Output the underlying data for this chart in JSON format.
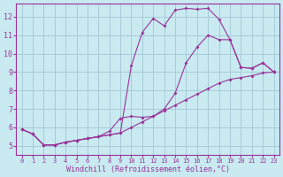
{
  "background_color": "#c8eaf0",
  "grid_color": "#a8ccd8",
  "line_color": "#993399",
  "xlabel": "Windchill (Refroidissement éolien,°C)",
  "xlim": [
    -0.5,
    23.5
  ],
  "ylim": [
    4.5,
    12.7
  ],
  "yticks": [
    5,
    6,
    7,
    8,
    9,
    10,
    11,
    12
  ],
  "xticks": [
    0,
    1,
    2,
    3,
    4,
    5,
    6,
    7,
    8,
    9,
    10,
    11,
    12,
    13,
    14,
    15,
    16,
    17,
    18,
    19,
    20,
    21,
    22,
    23
  ],
  "series1_x": [
    0,
    1,
    2,
    3,
    4,
    5,
    6,
    7,
    8,
    9,
    10,
    11,
    12,
    13,
    14,
    15,
    16,
    17,
    18,
    19,
    20,
    21,
    22,
    23
  ],
  "series1_y": [
    5.9,
    5.65,
    5.05,
    5.05,
    5.2,
    5.3,
    5.4,
    5.5,
    5.6,
    5.7,
    6.0,
    6.3,
    6.6,
    6.9,
    7.2,
    7.5,
    7.8,
    8.1,
    8.4,
    8.6,
    8.7,
    8.8,
    8.95,
    9.0
  ],
  "series2_x": [
    0,
    1,
    2,
    3,
    4,
    5,
    6,
    7,
    8,
    9,
    10,
    11,
    12,
    13,
    14,
    15,
    16,
    17,
    18,
    19,
    20,
    21,
    22,
    23
  ],
  "series2_y": [
    5.9,
    5.65,
    5.05,
    5.05,
    5.2,
    5.3,
    5.4,
    5.5,
    5.6,
    5.7,
    9.35,
    11.15,
    11.9,
    11.5,
    12.35,
    12.45,
    12.4,
    12.45,
    11.85,
    10.75,
    9.25,
    9.2,
    9.5,
    9.0
  ],
  "series3_x": [
    0,
    1,
    2,
    3,
    4,
    5,
    6,
    7,
    8,
    9,
    10,
    11,
    12,
    13,
    14,
    15,
    16,
    17,
    18,
    19,
    20,
    21,
    22,
    23
  ],
  "series3_y": [
    5.9,
    5.65,
    5.05,
    5.05,
    5.2,
    5.3,
    5.4,
    5.5,
    5.8,
    6.5,
    6.6,
    6.55,
    6.6,
    7.0,
    7.85,
    9.5,
    10.35,
    11.0,
    10.75,
    10.75,
    9.25,
    9.2,
    9.5,
    9.0
  ]
}
